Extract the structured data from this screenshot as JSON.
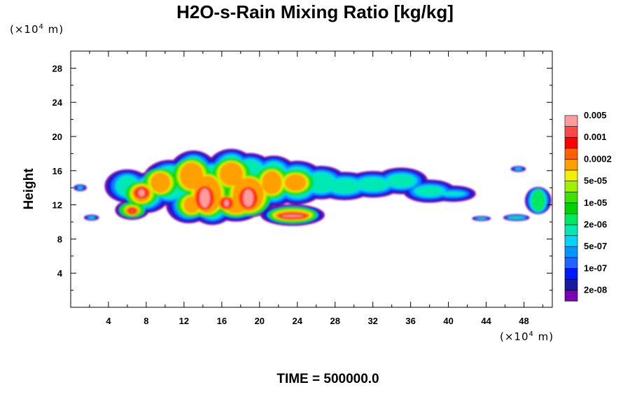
{
  "chart_data": {
    "type": "heatmap",
    "title": "H2O-s-Rain Mixing Ratio [kg/kg]",
    "ylabel": "Height",
    "xlabel": "",
    "x_unit_label": "m",
    "y_unit_label": "m",
    "unit_scale": "×10",
    "unit_exponent": "4",
    "xlim": [
      0,
      51
    ],
    "ylim": [
      0,
      30
    ],
    "x_ticks": [
      4,
      8,
      12,
      16,
      20,
      24,
      28,
      32,
      36,
      40,
      44,
      48
    ],
    "y_ticks": [
      4,
      8,
      12,
      16,
      20,
      24,
      28
    ],
    "footer": "TIME = 500000.0",
    "colorbar": {
      "colors": [
        "#7a00b5",
        "#1a1aa0",
        "#0018ff",
        "#1e64ff",
        "#0096ff",
        "#00d2ff",
        "#00e8b4",
        "#00e860",
        "#00d200",
        "#40e000",
        "#a0f000",
        "#f0f000",
        "#ffa000",
        "#ff6000",
        "#ff0000",
        "#ff4848",
        "#ff9c9c"
      ],
      "labels": [
        "2e-08",
        "1e-07",
        "5e-07",
        "2e-06",
        "1e-05",
        "5e-05",
        "0.0002",
        "0.001",
        "0.005"
      ]
    }
  }
}
